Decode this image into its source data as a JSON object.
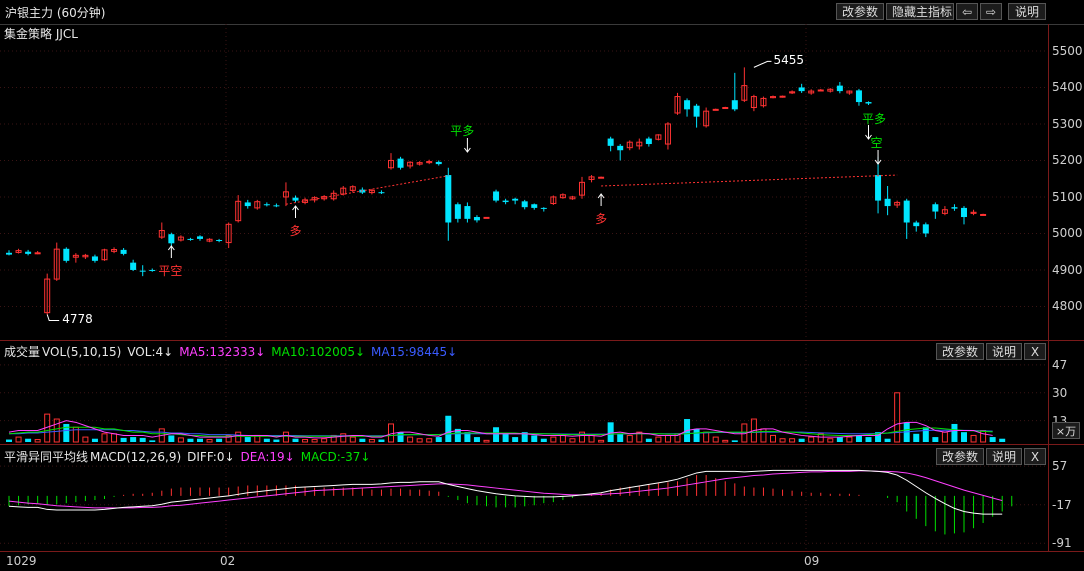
{
  "window": {
    "title": "沪银主力 (60分钟)"
  },
  "toolbar": {
    "params_label": "改参数",
    "hide_indicator_label": "隐藏主指标",
    "prev_label": "⇦",
    "next_label": "⇨",
    "help_label": "说明"
  },
  "main_panel": {
    "strategy_label": "集金策略 JJCL",
    "y_ticks": [
      "5500",
      "5400",
      "5300",
      "5200",
      "5100",
      "5000",
      "4900",
      "4800"
    ],
    "annotations": {
      "high_label": "5455",
      "low_label": "4778",
      "signal_ping_kong": "平空",
      "signal_duo_1": "多",
      "signal_ping_duo_1": "平多",
      "signal_duo_2": "多",
      "signal_ping_duo_2": "平多",
      "signal_kong": "空"
    }
  },
  "volume_panel": {
    "title": "成交量",
    "spec": "VOL(5,10,15)",
    "vol_value": "VOL:4↓",
    "ma5": "MA5:132333↓",
    "ma10": "MA10:102005↓",
    "ma15": "MA15:98445↓",
    "y_ticks": [
      "47",
      "30",
      "13"
    ],
    "unit_label": "×万",
    "params_label": "改参数",
    "help_label": "说明",
    "close_label": "X"
  },
  "macd_panel": {
    "title": "平滑异同平均线",
    "spec": "MACD(12,26,9)",
    "diff": "DIFF:0↓",
    "dea": "DEA:19↓",
    "macd": "MACD:-37↓",
    "y_ticks": [
      "57",
      "-17",
      "-91"
    ],
    "params_label": "改参数",
    "help_label": "说明",
    "close_label": "X"
  },
  "x_axis": {
    "labels": [
      "1029",
      "02",
      "09"
    ]
  },
  "colors": {
    "up": "#ff3232",
    "down": "#00e5ff",
    "ma5": "#ff40ff",
    "ma10": "#00e000",
    "ma15": "#3a5bff",
    "diff": "#ffffff",
    "dea": "#ff40ff",
    "signal_up": "#ff3232",
    "signal_green": "#00e000"
  },
  "chart_data": {
    "type": "candlestick",
    "y_range": [
      4730,
      5530
    ],
    "candles": [
      {
        "o": 4947,
        "c": 4942,
        "h": 4954,
        "l": 4940
      },
      {
        "o": 4948,
        "c": 4953,
        "h": 4958,
        "l": 4945
      },
      {
        "o": 4950,
        "c": 4944,
        "h": 4955,
        "l": 4940
      },
      {
        "o": 4945,
        "c": 4947,
        "h": 4952,
        "l": 4943
      },
      {
        "o": 4783,
        "c": 4875,
        "h": 4890,
        "l": 4778
      },
      {
        "o": 4875,
        "c": 4957,
        "h": 4975,
        "l": 4870
      },
      {
        "o": 4958,
        "c": 4925,
        "h": 4962,
        "l": 4920
      },
      {
        "o": 4935,
        "c": 4940,
        "h": 4946,
        "l": 4920
      },
      {
        "o": 4936,
        "c": 4940,
        "h": 4944,
        "l": 4930
      },
      {
        "o": 4937,
        "c": 4925,
        "h": 4942,
        "l": 4920
      },
      {
        "o": 4928,
        "c": 4955,
        "h": 4958,
        "l": 4925
      },
      {
        "o": 4951,
        "c": 4956,
        "h": 4962,
        "l": 4946
      },
      {
        "o": 4955,
        "c": 4944,
        "h": 4960,
        "l": 4940
      },
      {
        "o": 4920,
        "c": 4900,
        "h": 4928,
        "l": 4897
      },
      {
        "o": 4898,
        "c": 4897,
        "h": 4913,
        "l": 4883
      },
      {
        "o": 4900,
        "c": 4898,
        "h": 4904,
        "l": 4895
      },
      {
        "o": 4990,
        "c": 5008,
        "h": 5030,
        "l": 4985
      },
      {
        "o": 4998,
        "c": 4973,
        "h": 5002,
        "l": 4965
      },
      {
        "o": 4982,
        "c": 4990,
        "h": 4995,
        "l": 4978
      },
      {
        "o": 4985,
        "c": 4984,
        "h": 4988,
        "l": 4980
      },
      {
        "o": 4992,
        "c": 4985,
        "h": 4995,
        "l": 4980
      },
      {
        "o": 4979,
        "c": 4984,
        "h": 4987,
        "l": 4976
      },
      {
        "o": 4982,
        "c": 4980,
        "h": 4985,
        "l": 4976
      },
      {
        "o": 4975,
        "c": 5025,
        "h": 5030,
        "l": 4960
      },
      {
        "o": 5035,
        "c": 5088,
        "h": 5105,
        "l": 5030
      },
      {
        "o": 5085,
        "c": 5075,
        "h": 5092,
        "l": 5068
      },
      {
        "o": 5070,
        "c": 5087,
        "h": 5092,
        "l": 5065
      },
      {
        "o": 5080,
        "c": 5079,
        "h": 5085,
        "l": 5074
      },
      {
        "o": 5077,
        "c": 5075,
        "h": 5082,
        "l": 5072
      },
      {
        "o": 5100,
        "c": 5114,
        "h": 5140,
        "l": 5075
      },
      {
        "o": 5098,
        "c": 5090,
        "h": 5104,
        "l": 5085
      },
      {
        "o": 5085,
        "c": 5092,
        "h": 5098,
        "l": 5080
      },
      {
        "o": 5092,
        "c": 5098,
        "h": 5102,
        "l": 5085
      },
      {
        "o": 5095,
        "c": 5101,
        "h": 5105,
        "l": 5090
      },
      {
        "o": 5095,
        "c": 5110,
        "h": 5118,
        "l": 5090
      },
      {
        "o": 5108,
        "c": 5124,
        "h": 5130,
        "l": 5104
      },
      {
        "o": 5118,
        "c": 5128,
        "h": 5132,
        "l": 5112
      },
      {
        "o": 5120,
        "c": 5112,
        "h": 5126,
        "l": 5108
      },
      {
        "o": 5112,
        "c": 5118,
        "h": 5122,
        "l": 5107
      },
      {
        "o": 5113,
        "c": 5112,
        "h": 5118,
        "l": 5108
      },
      {
        "o": 5180,
        "c": 5200,
        "h": 5220,
        "l": 5175
      },
      {
        "o": 5205,
        "c": 5180,
        "h": 5210,
        "l": 5175
      },
      {
        "o": 5185,
        "c": 5195,
        "h": 5198,
        "l": 5178
      },
      {
        "o": 5190,
        "c": 5194,
        "h": 5198,
        "l": 5186
      },
      {
        "o": 5194,
        "c": 5197,
        "h": 5202,
        "l": 5190
      },
      {
        "o": 5196,
        "c": 5190,
        "h": 5200,
        "l": 5186
      },
      {
        "o": 5160,
        "c": 5030,
        "h": 5180,
        "l": 4980
      },
      {
        "o": 5080,
        "c": 5040,
        "h": 5085,
        "l": 5030
      },
      {
        "o": 5075,
        "c": 5040,
        "h": 5085,
        "l": 5030
      },
      {
        "o": 5045,
        "c": 5036,
        "h": 5050,
        "l": 5030
      },
      {
        "o": 5044,
        "c": 5044,
        "h": 5044,
        "l": 5044
      },
      {
        "o": 5115,
        "c": 5090,
        "h": 5120,
        "l": 5085
      },
      {
        "o": 5090,
        "c": 5086,
        "h": 5095,
        "l": 5080
      },
      {
        "o": 5095,
        "c": 5090,
        "h": 5098,
        "l": 5080
      },
      {
        "o": 5088,
        "c": 5072,
        "h": 5092,
        "l": 5066
      },
      {
        "o": 5080,
        "c": 5070,
        "h": 5082,
        "l": 5065
      },
      {
        "o": 5070,
        "c": 5068,
        "h": 5072,
        "l": 5060
      },
      {
        "o": 5082,
        "c": 5100,
        "h": 5104,
        "l": 5078
      },
      {
        "o": 5098,
        "c": 5106,
        "h": 5110,
        "l": 5095
      },
      {
        "o": 5095,
        "c": 5100,
        "h": 5103,
        "l": 5092
      },
      {
        "o": 5105,
        "c": 5140,
        "h": 5155,
        "l": 5095
      },
      {
        "o": 5148,
        "c": 5155,
        "h": 5160,
        "l": 5140
      },
      {
        "o": 5153,
        "c": 5154,
        "h": 5156,
        "l": 5151
      },
      {
        "o": 5260,
        "c": 5240,
        "h": 5265,
        "l": 5225
      },
      {
        "o": 5240,
        "c": 5228,
        "h": 5245,
        "l": 5200
      },
      {
        "o": 5235,
        "c": 5250,
        "h": 5255,
        "l": 5228
      },
      {
        "o": 5240,
        "c": 5250,
        "h": 5260,
        "l": 5230
      },
      {
        "o": 5260,
        "c": 5245,
        "h": 5265,
        "l": 5238
      },
      {
        "o": 5258,
        "c": 5270,
        "h": 5272,
        "l": 5255
      },
      {
        "o": 5245,
        "c": 5300,
        "h": 5305,
        "l": 5230
      },
      {
        "o": 5330,
        "c": 5375,
        "h": 5385,
        "l": 5325
      },
      {
        "o": 5365,
        "c": 5340,
        "h": 5370,
        "l": 5320
      },
      {
        "o": 5350,
        "c": 5320,
        "h": 5355,
        "l": 5290
      },
      {
        "o": 5295,
        "c": 5335,
        "h": 5345,
        "l": 5290
      },
      {
        "o": 5340,
        "c": 5340,
        "h": 5342,
        "l": 5338
      },
      {
        "o": 5345,
        "c": 5345,
        "h": 5347,
        "l": 5343
      },
      {
        "o": 5365,
        "c": 5340,
        "h": 5440,
        "l": 5335
      },
      {
        "o": 5365,
        "c": 5405,
        "h": 5455,
        "l": 5360
      },
      {
        "o": 5345,
        "c": 5375,
        "h": 5380,
        "l": 5335
      },
      {
        "o": 5350,
        "c": 5370,
        "h": 5375,
        "l": 5345
      },
      {
        "o": 5372,
        "c": 5375,
        "h": 5378,
        "l": 5370
      },
      {
        "o": 5374,
        "c": 5376,
        "h": 5378,
        "l": 5372
      },
      {
        "o": 5385,
        "c": 5388,
        "h": 5392,
        "l": 5382
      },
      {
        "o": 5400,
        "c": 5390,
        "h": 5410,
        "l": 5385
      },
      {
        "o": 5385,
        "c": 5390,
        "h": 5395,
        "l": 5380
      },
      {
        "o": 5392,
        "c": 5393,
        "h": 5396,
        "l": 5389
      },
      {
        "o": 5390,
        "c": 5395,
        "h": 5398,
        "l": 5386
      },
      {
        "o": 5405,
        "c": 5390,
        "h": 5415,
        "l": 5384
      },
      {
        "o": 5385,
        "c": 5390,
        "h": 5392,
        "l": 5380
      },
      {
        "o": 5392,
        "c": 5360,
        "h": 5396,
        "l": 5350
      },
      {
        "o": 5360,
        "c": 5356,
        "h": 5362,
        "l": 5352
      },
      {
        "o": 5160,
        "c": 5090,
        "h": 5210,
        "l": 5055
      },
      {
        "o": 5095,
        "c": 5075,
        "h": 5130,
        "l": 5050
      },
      {
        "o": 5078,
        "c": 5085,
        "h": 5090,
        "l": 5070
      },
      {
        "o": 5090,
        "c": 5030,
        "h": 5095,
        "l": 4985
      },
      {
        "o": 5030,
        "c": 5020,
        "h": 5035,
        "l": 5005
      },
      {
        "o": 5025,
        "c": 5000,
        "h": 5030,
        "l": 4990
      },
      {
        "o": 5080,
        "c": 5060,
        "h": 5085,
        "l": 5040
      },
      {
        "o": 5055,
        "c": 5065,
        "h": 5075,
        "l": 5050
      },
      {
        "o": 5072,
        "c": 5068,
        "h": 5080,
        "l": 5062
      },
      {
        "o": 5070,
        "c": 5045,
        "h": 5075,
        "l": 5025
      },
      {
        "o": 5055,
        "c": 5058,
        "h": 5065,
        "l": 5050
      },
      {
        "o": 5052,
        "c": 5052,
        "h": 5054,
        "l": 5050
      }
    ],
    "volume_range": [
      0,
      50
    ],
    "volume": [
      1.5,
      3,
      2,
      1.5,
      17,
      14,
      11,
      9,
      3,
      2,
      5,
      5,
      2.5,
      3,
      2.5,
      1,
      8,
      4,
      2.5,
      2,
      2,
      1.5,
      2,
      4,
      6,
      3,
      4,
      2,
      1.5,
      6,
      2,
      1.5,
      1.5,
      2,
      4,
      5,
      3,
      2,
      1.5,
      1.5,
      11,
      6,
      3,
      2,
      2,
      3,
      16,
      8,
      6,
      3,
      1,
      9,
      5,
      3,
      6,
      4,
      2,
      3,
      4,
      2,
      6,
      4,
      1,
      12,
      5,
      4,
      6,
      2,
      3,
      4,
      5,
      14,
      8,
      6,
      3,
      1,
      1,
      11,
      14,
      8,
      4,
      2,
      2,
      2,
      3,
      5,
      2,
      3,
      3,
      4,
      3,
      6,
      2,
      30,
      12,
      5,
      9,
      3,
      6,
      11,
      6,
      4,
      7,
      3,
      2
    ],
    "ma5": [
      6,
      7,
      7,
      7,
      9,
      11,
      13,
      12,
      10,
      8,
      6,
      5,
      4,
      4,
      4,
      3,
      4,
      5,
      5,
      4,
      3,
      3,
      3,
      3,
      4,
      4,
      4,
      4,
      3,
      4,
      3,
      3,
      2.5,
      2.5,
      3,
      3.5,
      4,
      4,
      3,
      3,
      5,
      6,
      6,
      5,
      4,
      3.5,
      6,
      7,
      7,
      6,
      5,
      5,
      5,
      5,
      5,
      4.5,
      4,
      4,
      4,
      3.5,
      4,
      4,
      3.5,
      5.5,
      6,
      5,
      5.5,
      5,
      4,
      4,
      4,
      7,
      8,
      8,
      7,
      6,
      5,
      5,
      7,
      8,
      8,
      6,
      5,
      4,
      3.5,
      3,
      3,
      3,
      3.5,
      4,
      4,
      4,
      8,
      11,
      12,
      12,
      10,
      7,
      6,
      7,
      7,
      7,
      5,
      4
    ],
    "ma10": [
      5,
      5.5,
      6,
      6,
      7,
      8,
      9,
      9,
      9,
      9,
      8,
      8,
      7,
      6,
      6,
      5,
      5,
      5,
      4.5,
      4,
      4,
      3.5,
      3.5,
      3.5,
      3.5,
      3.5,
      3.5,
      3.5,
      3.5,
      3.5,
      3.5,
      3.5,
      3.5,
      3.5,
      3.5,
      3.5,
      3.5,
      3.5,
      3.5,
      3.5,
      4,
      4.5,
      4.5,
      4.5,
      4.5,
      4.5,
      5,
      5.5,
      5.5,
      5.5,
      5.5,
      5.5,
      5.5,
      5.5,
      5,
      5,
      5,
      4.8,
      4.6,
      4.5,
      4.5,
      4.5,
      4.5,
      4.8,
      5,
      5,
      5,
      5,
      5,
      4.8,
      4.8,
      5,
      5.5,
      6,
      6,
      6,
      6,
      6,
      6,
      6.5,
      6.5,
      6.2,
      6,
      5.5,
      5,
      4.5,
      4.2,
      4,
      4,
      4,
      4.5,
      5,
      5.5,
      6.5,
      7.5,
      8,
      8.5,
      8.5,
      8,
      7.5,
      7,
      6.8,
      6.5,
      6.2
    ],
    "ma15": [
      5,
      5,
      5.5,
      5.5,
      6,
      6.5,
      7,
      7.5,
      7.5,
      7.5,
      7.5,
      7.5,
      7,
      7,
      6.5,
      6,
      6,
      5.5,
      5.5,
      5,
      5,
      4.5,
      4.5,
      4.5,
      4.2,
      4,
      4,
      4,
      4,
      4,
      4,
      3.8,
      3.8,
      3.8,
      3.8,
      3.8,
      3.8,
      3.8,
      3.8,
      3.8,
      4,
      4.2,
      4.4,
      4.5,
      4.6,
      4.6,
      4.8,
      5,
      5,
      5,
      5,
      5,
      5,
      5,
      5,
      5,
      5,
      5,
      4.9,
      4.8,
      4.8,
      4.8,
      4.8,
      4.8,
      4.9,
      5,
      5,
      5,
      5,
      5,
      5,
      5.2,
      5.4,
      5.6,
      5.8,
      5.8,
      5.8,
      5.8,
      5.8,
      6,
      6,
      6,
      6,
      6,
      5.8,
      5.6,
      5.4,
      5.2,
      5,
      5,
      5,
      5.2,
      5.4,
      5.8,
      6.2,
      6.6,
      7,
      7.2,
      7.2,
      7.2,
      7.1,
      7,
      6.8,
      6.6
    ],
    "macd_range": [
      -100,
      65
    ],
    "diff": [
      -20,
      -21,
      -22,
      -22,
      -26,
      -27,
      -27,
      -27,
      -27,
      -27,
      -26,
      -24,
      -22,
      -21,
      -20,
      -19,
      -16,
      -12,
      -10,
      -8,
      -6,
      -4,
      -2,
      0,
      3,
      6,
      8,
      10,
      12,
      14,
      16,
      17,
      18,
      19,
      20,
      21,
      22,
      22,
      22,
      23,
      25,
      26,
      26,
      27,
      27,
      27,
      22,
      18,
      14,
      10,
      7,
      4,
      2,
      0,
      -1,
      -2,
      -2,
      -2,
      -1,
      0,
      2,
      4,
      6,
      10,
      13,
      16,
      19,
      22,
      25,
      28,
      32,
      38,
      44,
      47,
      47,
      47,
      47,
      46,
      47,
      48,
      49,
      49,
      49,
      49,
      49,
      49,
      49,
      49,
      49,
      49,
      48,
      47,
      45,
      40,
      30,
      18,
      6,
      -5,
      -15,
      -24,
      -30,
      -33,
      -35,
      -35,
      -35
    ],
    "dea": [
      -10,
      -12,
      -14,
      -15,
      -17,
      -19,
      -20,
      -21,
      -22,
      -23,
      -23,
      -23,
      -23,
      -23,
      -22,
      -22,
      -21,
      -19,
      -18,
      -16,
      -14,
      -12,
      -10,
      -8,
      -6,
      -4,
      -2,
      0,
      2,
      4,
      6,
      8,
      10,
      11,
      12,
      13,
      14,
      15,
      16,
      17,
      18,
      19,
      20,
      21,
      22,
      23,
      23,
      22,
      21,
      19,
      17,
      15,
      13,
      11,
      9,
      7,
      5,
      4,
      3,
      2,
      2,
      2,
      3,
      4,
      5,
      7,
      9,
      11,
      13,
      15,
      18,
      21,
      24,
      27,
      30,
      33,
      35,
      37,
      39,
      40,
      42,
      43,
      44,
      45,
      46,
      46,
      47,
      47,
      47,
      48,
      48,
      47,
      47,
      46,
      44,
      40,
      35,
      29,
      23,
      17,
      11,
      6,
      1,
      -4,
      -9
    ],
    "macd": [
      -20,
      -18,
      -16,
      -14,
      -18,
      -16,
      -14,
      -12,
      -10,
      -8,
      -6,
      -2,
      2,
      4,
      4,
      6,
      10,
      14,
      16,
      16,
      16,
      16,
      16,
      16,
      18,
      20,
      20,
      20,
      20,
      20,
      20,
      18,
      16,
      16,
      16,
      16,
      16,
      14,
      12,
      12,
      14,
      14,
      12,
      12,
      10,
      8,
      -2,
      -8,
      -14,
      -18,
      -20,
      -22,
      -22,
      -22,
      -20,
      -18,
      -14,
      -12,
      -8,
      -4,
      0,
      4,
      6,
      12,
      16,
      18,
      20,
      22,
      24,
      26,
      28,
      34,
      40,
      40,
      34,
      28,
      24,
      18,
      16,
      16,
      14,
      12,
      10,
      8,
      6,
      6,
      4,
      4,
      4,
      2,
      0,
      0,
      -4,
      -12,
      -30,
      -44,
      -58,
      -68,
      -74,
      -72,
      -70,
      -62,
      -52,
      -40,
      -30,
      -20
    ]
  }
}
